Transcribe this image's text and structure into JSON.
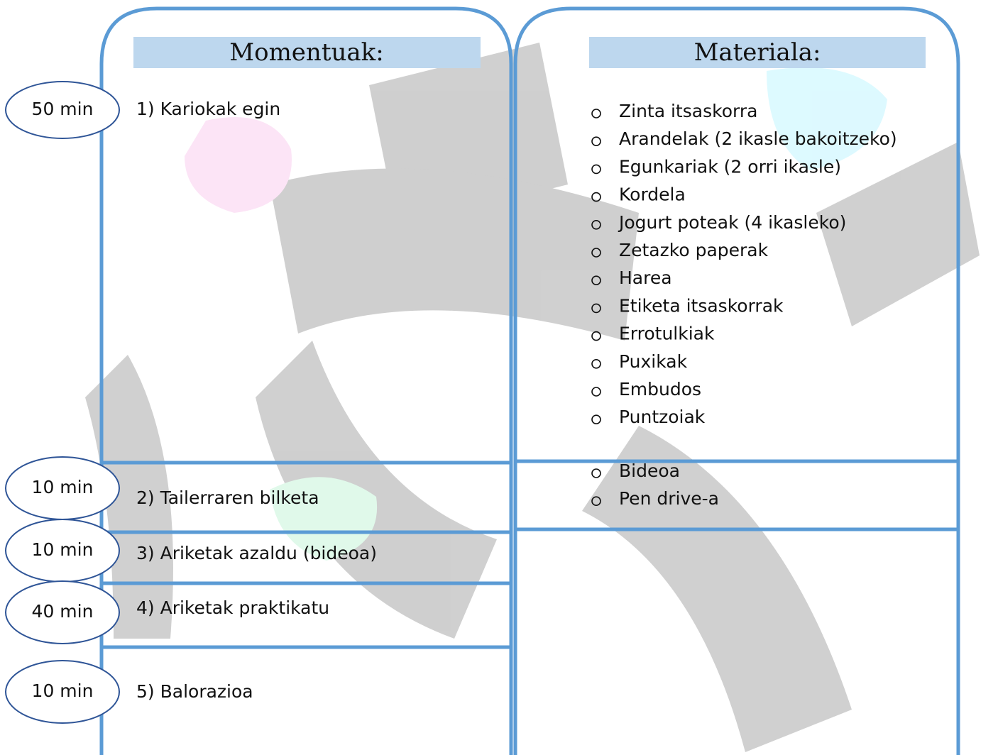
{
  "momentuak": {
    "title": "Momentuak:",
    "rows": [
      {
        "time": "50 min",
        "activity": "1) Kariokak egin"
      },
      {
        "time": "10 min",
        "activity": "2) Tailerraren bilketa"
      },
      {
        "time": "10 min",
        "activity": "3) Ariketak azaldu (bideoa)"
      },
      {
        "time": "40 min",
        "activity": "4) Ariketak praktikatu"
      },
      {
        "time": "10 min",
        "activity": "5) Balorazioa"
      }
    ]
  },
  "materiala": {
    "title": "Materiala:",
    "groups": [
      [
        "Zinta itsaskorra",
        "Arandelak (2 ikasle bakoitzeko)",
        "Egunkariak (2 orri ikasle)",
        "Kordela",
        "Jogurt poteak (4 ikasleko)",
        "Zetazko paperak",
        "Harea",
        "Etiketa itsaskorrak",
        "Errotulkiak",
        "Puxikak",
        "Embudos",
        "Puntzoiak"
      ],
      [
        "Bideoa",
        "Pen drive-a"
      ]
    ]
  }
}
